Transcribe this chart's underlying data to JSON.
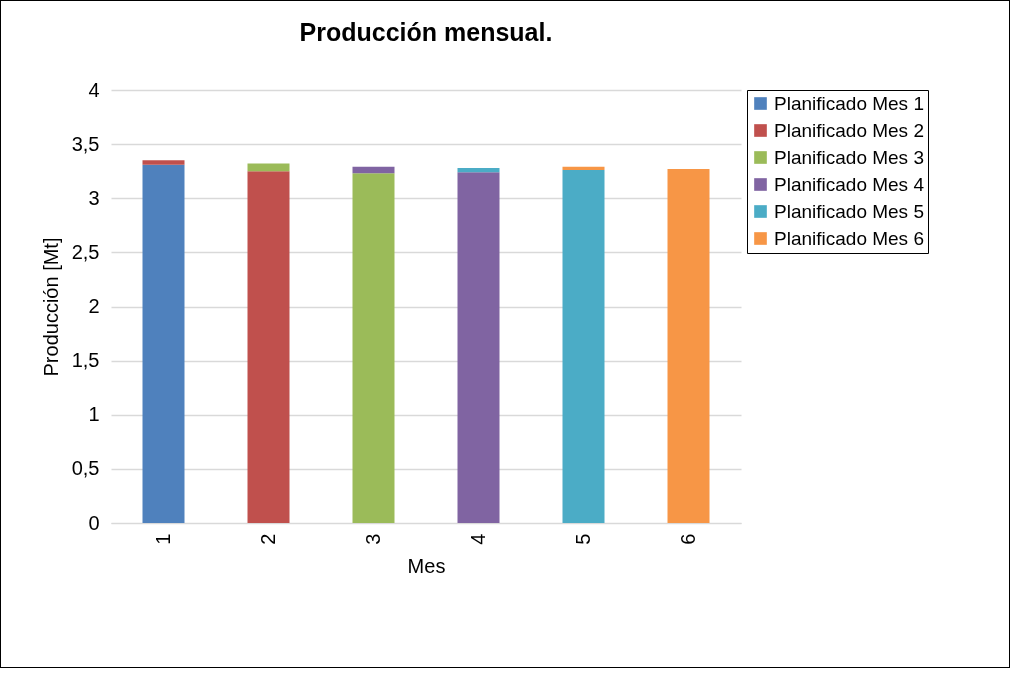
{
  "chart_data": {
    "type": "bar",
    "title": "Producción mensual.",
    "xlabel": "Mes",
    "ylabel": "Producción [Mt]",
    "categories": [
      "1",
      "2",
      "3",
      "4",
      "5",
      "6"
    ],
    "stacked": true,
    "ylim": [
      0,
      4
    ],
    "yticks": [
      {
        "value": 0,
        "label": "0"
      },
      {
        "value": 0.5,
        "label": "0,5"
      },
      {
        "value": 1,
        "label": "1"
      },
      {
        "value": 1.5,
        "label": "1,5"
      },
      {
        "value": 2,
        "label": "2"
      },
      {
        "value": 2.5,
        "label": "2,5"
      },
      {
        "value": 3,
        "label": "3"
      },
      {
        "value": 3.5,
        "label": "3,5"
      },
      {
        "value": 4,
        "label": "4"
      }
    ],
    "grid": "y",
    "legend": "right",
    "series": [
      {
        "name": "Planificado Mes 1",
        "color": "#4f81bd",
        "values": [
          3.31,
          null,
          null,
          null,
          null,
          null
        ]
      },
      {
        "name": "Planificado Mes 2",
        "color": "#c0504d",
        "values": [
          0.04,
          3.25,
          null,
          null,
          null,
          null
        ]
      },
      {
        "name": "Planificado Mes 3",
        "color": "#9bbb59",
        "values": [
          null,
          0.07,
          3.23,
          null,
          null,
          null
        ]
      },
      {
        "name": "Planificado Mes 4",
        "color": "#8064a2",
        "values": [
          null,
          null,
          0.06,
          3.24,
          null,
          null
        ]
      },
      {
        "name": "Planificado Mes 5",
        "color": "#4bacc6",
        "values": [
          null,
          null,
          null,
          0.04,
          3.26,
          null
        ]
      },
      {
        "name": "Planificado Mes 6",
        "color": "#f79646",
        "values": [
          null,
          null,
          null,
          null,
          0.03,
          3.27
        ]
      }
    ]
  }
}
